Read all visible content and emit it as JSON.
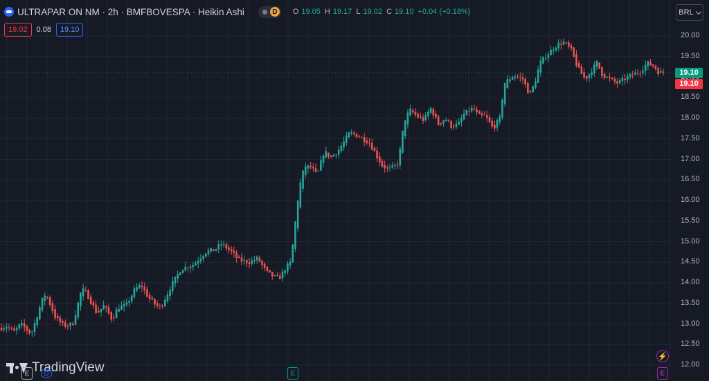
{
  "header": {
    "title": "ULTRAPAR ON NM · 2h · BMFBOVESPA · Heikin Ashi",
    "badge_letter": "D",
    "ohlc": {
      "o_label": "O",
      "o_value": "19.05",
      "h_label": "H",
      "h_value": "19.17",
      "l_label": "L",
      "l_value": "19.02",
      "c_label": "C",
      "c_value": "19.10",
      "change": "+0.04 (+0.18%)"
    }
  },
  "trade": {
    "sell": "19.02",
    "spread": "0.08",
    "buy": "19.10"
  },
  "currency": "BRL",
  "price_tags": {
    "close": "19.10",
    "bid": "19.10"
  },
  "watermark": "TradingView",
  "event_markers": {
    "earnings": "E",
    "dividend": "D",
    "flash": "⚡"
  },
  "colors": {
    "up": "#26a69a",
    "down": "#ef5350",
    "background": "#161a25",
    "grid": "#222632"
  },
  "chart_data": {
    "type": "candlestick",
    "style": "Heikin Ashi",
    "symbol": "ULTRAPAR ON NM",
    "interval": "2h",
    "exchange": "BMFBOVESPA",
    "ylim": [
      11.9,
      20.2
    ],
    "y_ticks": [
      "20.00",
      "19.50",
      "19.00",
      "18.50",
      "18.00",
      "17.50",
      "17.00",
      "16.50",
      "16.00",
      "15.50",
      "15.00",
      "14.50",
      "14.00",
      "13.50",
      "13.00",
      "12.50",
      "12.00"
    ],
    "grid": true,
    "close_line": 19.1,
    "candle_count": 260,
    "anchors": [
      [
        0,
        12.9
      ],
      [
        10,
        12.95
      ],
      [
        20,
        12.8
      ],
      [
        30,
        13.0
      ],
      [
        45,
        12.75
      ],
      [
        60,
        13.55
      ],
      [
        66,
        13.75
      ],
      [
        80,
        13.15
      ],
      [
        92,
        12.95
      ],
      [
        105,
        13.0
      ],
      [
        118,
        13.85
      ],
      [
        125,
        13.75
      ],
      [
        140,
        13.25
      ],
      [
        150,
        13.45
      ],
      [
        162,
        13.1
      ],
      [
        170,
        13.4
      ],
      [
        182,
        13.45
      ],
      [
        195,
        13.85
      ],
      [
        204,
        13.95
      ],
      [
        214,
        13.65
      ],
      [
        225,
        13.45
      ],
      [
        232,
        13.4
      ],
      [
        246,
        13.9
      ],
      [
        262,
        14.35
      ],
      [
        280,
        14.45
      ],
      [
        296,
        14.75
      ],
      [
        310,
        14.8
      ],
      [
        320,
        14.95
      ],
      [
        334,
        14.75
      ],
      [
        345,
        14.55
      ],
      [
        360,
        14.5
      ],
      [
        372,
        14.6
      ],
      [
        385,
        14.25
      ],
      [
        395,
        14.15
      ],
      [
        403,
        14.1
      ],
      [
        412,
        14.35
      ],
      [
        420,
        14.5
      ],
      [
        425,
        15.25
      ],
      [
        432,
        16.3
      ],
      [
        440,
        16.85
      ],
      [
        450,
        16.8
      ],
      [
        458,
        16.6
      ],
      [
        468,
        17.2
      ],
      [
        478,
        17.05
      ],
      [
        490,
        17.25
      ],
      [
        505,
        17.65
      ],
      [
        520,
        17.55
      ],
      [
        534,
        17.4
      ],
      [
        545,
        17.05
      ],
      [
        552,
        16.85
      ],
      [
        562,
        16.75
      ],
      [
        575,
        16.9
      ],
      [
        584,
        17.95
      ],
      [
        592,
        18.2
      ],
      [
        602,
        18.05
      ],
      [
        612,
        17.95
      ],
      [
        622,
        18.25
      ],
      [
        633,
        17.85
      ],
      [
        643,
        18.0
      ],
      [
        652,
        17.8
      ],
      [
        662,
        17.85
      ],
      [
        670,
        18.1
      ],
      [
        683,
        18.25
      ],
      [
        691,
        18.05
      ],
      [
        701,
        18.05
      ],
      [
        712,
        17.75
      ],
      [
        722,
        18.0
      ],
      [
        728,
        18.85
      ],
      [
        742,
        19.05
      ],
      [
        755,
        18.95
      ],
      [
        765,
        18.55
      ],
      [
        772,
        18.85
      ],
      [
        780,
        19.35
      ],
      [
        790,
        19.55
      ],
      [
        805,
        19.8
      ],
      [
        815,
        19.85
      ],
      [
        825,
        19.65
      ],
      [
        835,
        19.2
      ],
      [
        845,
        18.95
      ],
      [
        852,
        19.1
      ],
      [
        862,
        19.35
      ],
      [
        870,
        19.05
      ],
      [
        880,
        18.95
      ],
      [
        892,
        18.85
      ],
      [
        902,
        18.95
      ],
      [
        912,
        19.05
      ],
      [
        925,
        19.15
      ],
      [
        935,
        19.35
      ],
      [
        945,
        19.25
      ],
      [
        952,
        19.1
      ],
      [
        958,
        19.12
      ]
    ]
  }
}
